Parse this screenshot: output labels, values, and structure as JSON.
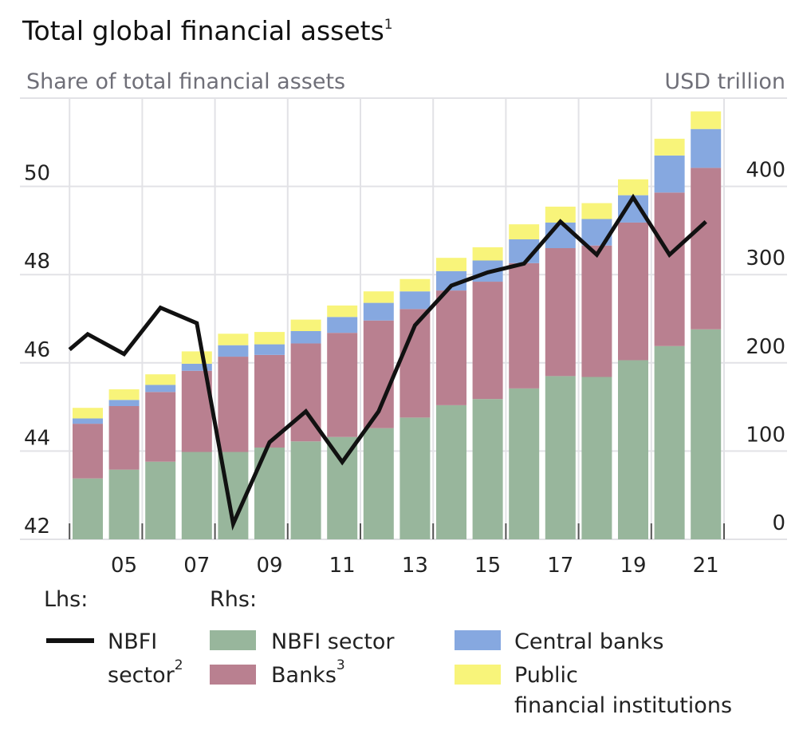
{
  "chart_data": {
    "type": "bar",
    "stacked": true,
    "title": "Total global financial assets",
    "title_footnote": "1",
    "left_axis_label": "Share of total financial assets",
    "right_axis_label": "USD trillion",
    "categories": [
      "04",
      "05",
      "06",
      "07",
      "08",
      "09",
      "10",
      "11",
      "12",
      "13",
      "14",
      "15",
      "16",
      "17",
      "18",
      "19",
      "20",
      "21"
    ],
    "x_tick_labels": [
      "05",
      "07",
      "09",
      "11",
      "13",
      "15",
      "17",
      "19",
      "21"
    ],
    "x_tick_years": [
      2005,
      2007,
      2009,
      2011,
      2013,
      2015,
      2017,
      2019,
      2021
    ],
    "years": [
      2004,
      2005,
      2006,
      2007,
      2008,
      2009,
      2010,
      2011,
      2012,
      2013,
      2014,
      2015,
      2016,
      2017,
      2018,
      2019,
      2020,
      2021
    ],
    "ylim_left": [
      42,
      52
    ],
    "yticks_left": [
      "42",
      "44",
      "46",
      "48",
      "50"
    ],
    "ylim_right": [
      0,
      500
    ],
    "yticks_right": [
      "0",
      "100",
      "200",
      "300",
      "400"
    ],
    "grid": true,
    "legend_placement": "bottom",
    "series": [
      {
        "name": "NBFI sector",
        "axis": "right",
        "color": "#98b69c",
        "values": [
          69,
          79,
          88,
          99,
          99,
          104,
          111,
          116,
          126,
          138,
          152,
          159,
          171,
          185,
          184,
          203,
          219,
          238
        ]
      },
      {
        "name": "Banks",
        "footnote": "3",
        "axis": "right",
        "color": "#b98090",
        "values": [
          62,
          72,
          79,
          92,
          108,
          105,
          111,
          118,
          122,
          123,
          130,
          133,
          142,
          145,
          149,
          156,
          174,
          183
        ]
      },
      {
        "name": "Central banks",
        "axis": "right",
        "color": "#86a8e0",
        "values": [
          6,
          7,
          8,
          8,
          13,
          12,
          14,
          18,
          20,
          20,
          22,
          24,
          27,
          29,
          30,
          31,
          42,
          44
        ]
      },
      {
        "name": "Public financial institutions",
        "axis": "right",
        "color": "#f8f47a",
        "values": [
          12,
          12,
          12,
          14,
          13,
          14,
          13,
          13,
          13,
          14,
          15,
          15,
          17,
          18,
          18,
          18,
          19,
          20
        ]
      }
    ],
    "line": {
      "name": "NBFI sector",
      "footnote": "2",
      "axis": "left",
      "color": "#111111",
      "x": [
        2003.5,
        2004,
        2005,
        2006,
        2007,
        2008,
        2009,
        2010,
        2011,
        2012,
        2013,
        2014,
        2015,
        2016,
        2017,
        2018,
        2019,
        2020,
        2021
      ],
      "values": [
        46.3,
        46.65,
        46.2,
        47.25,
        46.9,
        42.35,
        44.2,
        44.9,
        43.75,
        44.9,
        46.85,
        47.75,
        48.05,
        48.25,
        49.2,
        48.45,
        49.75,
        48.45,
        49.2
      ]
    }
  },
  "legend": {
    "lhs_label": "Lhs:",
    "rhs_label": "Rhs:",
    "line_label_1": "NBFI",
    "line_label_2": "sector",
    "line_sup": "2",
    "nbfi": "NBFI sector",
    "banks": "Banks",
    "banks_sup": "3",
    "central": "Central banks",
    "public_1": "Public",
    "public_2": "financial institutions"
  }
}
